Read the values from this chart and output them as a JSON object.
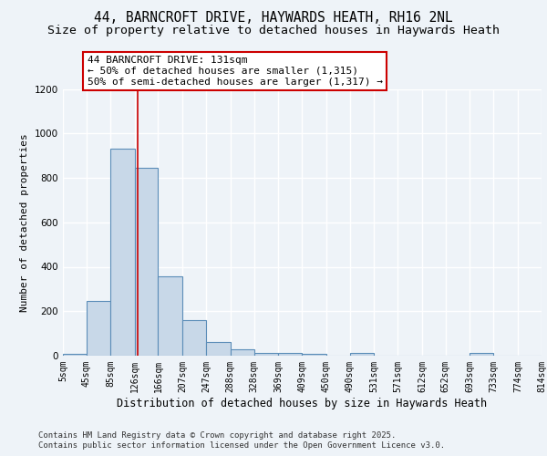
{
  "title1": "44, BARNCROFT DRIVE, HAYWARDS HEATH, RH16 2NL",
  "title2": "Size of property relative to detached houses in Haywards Heath",
  "xlabel": "Distribution of detached houses by size in Haywards Heath",
  "ylabel": "Number of detached properties",
  "bin_edges": [
    5,
    45,
    85,
    126,
    166,
    207,
    247,
    288,
    328,
    369,
    409,
    450,
    490,
    531,
    571,
    612,
    652,
    693,
    733,
    774,
    814
  ],
  "bar_heights": [
    7,
    248,
    930,
    845,
    355,
    158,
    62,
    28,
    12,
    12,
    8,
    0,
    12,
    0,
    0,
    0,
    0,
    12,
    0,
    0
  ],
  "bar_color": "#c8d8e8",
  "bar_edgecolor": "#5b8db8",
  "property_line_x": 131,
  "property_line_color": "#cc0000",
  "annotation_text": "44 BARNCROFT DRIVE: 131sqm\n← 50% of detached houses are smaller (1,315)\n50% of semi-detached houses are larger (1,317) →",
  "annotation_box_color": "#ffffff",
  "annotation_box_edgecolor": "#cc0000",
  "ylim": [
    0,
    1200
  ],
  "xlim": [
    5,
    814
  ],
  "tick_labels": [
    "5sqm",
    "45sqm",
    "85sqm",
    "126sqm",
    "166sqm",
    "207sqm",
    "247sqm",
    "288sqm",
    "328sqm",
    "369sqm",
    "409sqm",
    "450sqm",
    "490sqm",
    "531sqm",
    "571sqm",
    "612sqm",
    "652sqm",
    "693sqm",
    "733sqm",
    "774sqm",
    "814sqm"
  ],
  "footer_line1": "Contains HM Land Registry data © Crown copyright and database right 2025.",
  "footer_line2": "Contains public sector information licensed under the Open Government Licence v3.0.",
  "background_color": "#eef3f8",
  "grid_color": "#ffffff",
  "title1_fontsize": 10.5,
  "title2_fontsize": 9.5,
  "xlabel_fontsize": 8.5,
  "ylabel_fontsize": 8,
  "tick_fontsize": 7,
  "annotation_fontsize": 8,
  "footer_fontsize": 6.5
}
